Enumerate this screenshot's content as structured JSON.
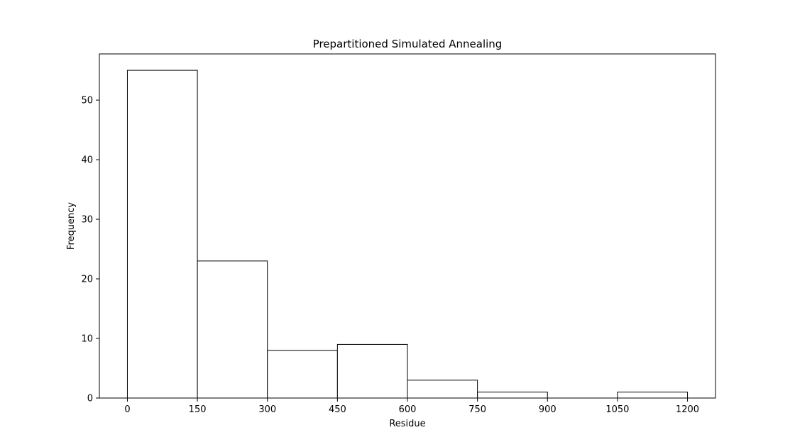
{
  "chart_data": {
    "type": "bar",
    "title": "Prepartitioned Simulated Annealing",
    "xlabel": "Residue",
    "ylabel": "Frequency",
    "bins": [
      {
        "x0": 0,
        "x1": 150,
        "value": 55
      },
      {
        "x0": 150,
        "x1": 300,
        "value": 23
      },
      {
        "x0": 300,
        "x1": 450,
        "value": 8
      },
      {
        "x0": 450,
        "x1": 600,
        "value": 9
      },
      {
        "x0": 600,
        "x1": 750,
        "value": 3
      },
      {
        "x0": 750,
        "x1": 900,
        "value": 1
      },
      {
        "x0": 900,
        "x1": 1050,
        "value": 0
      },
      {
        "x0": 1050,
        "x1": 1200,
        "value": 1
      }
    ],
    "xticks": [
      0,
      150,
      300,
      450,
      600,
      750,
      900,
      1050,
      1200
    ],
    "yticks": [
      0,
      10,
      20,
      30,
      40,
      50
    ],
    "xlim": [
      -60,
      1260
    ],
    "ylim": [
      0,
      57.75
    ],
    "grid": false,
    "colors": {
      "bar_fill": "#ffffff",
      "bar_edge": "#000000",
      "axes": "#000000",
      "background": "#ffffff"
    }
  }
}
